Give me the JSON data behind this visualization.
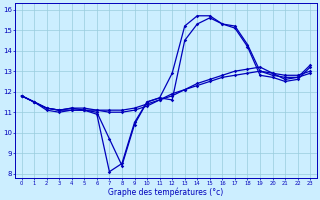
{
  "xlabel": "Graphe des températures (°c)",
  "background_color": "#cceeff",
  "line_color": "#0000bb",
  "grid_color": "#99ccdd",
  "xlim": [
    -0.5,
    23.5
  ],
  "ylim": [
    7.8,
    16.3
  ],
  "yticks": [
    8,
    9,
    10,
    11,
    12,
    13,
    14,
    15,
    16
  ],
  "xticks": [
    0,
    1,
    2,
    3,
    4,
    5,
    6,
    7,
    8,
    9,
    10,
    11,
    12,
    13,
    14,
    15,
    16,
    17,
    18,
    19,
    20,
    21,
    22,
    23
  ],
  "series": [
    {
      "x": [
        0,
        1,
        2,
        3,
        4,
        5,
        6,
        7,
        8,
        9,
        10,
        11,
        12,
        13,
        14,
        15,
        16,
        17,
        18,
        19,
        20,
        21,
        22,
        23
      ],
      "y": [
        11.8,
        11.5,
        11.1,
        11.0,
        11.1,
        11.1,
        10.9,
        8.1,
        8.5,
        10.5,
        11.5,
        11.7,
        12.9,
        15.2,
        15.7,
        15.7,
        15.3,
        15.2,
        14.3,
        13.0,
        12.9,
        12.6,
        12.7,
        13.3
      ]
    },
    {
      "x": [
        0,
        1,
        2,
        3,
        4,
        5,
        6,
        7,
        8,
        9,
        10,
        11,
        12,
        13,
        14,
        15,
        16,
        17,
        18,
        19,
        20,
        21,
        22,
        23
      ],
      "y": [
        11.8,
        11.5,
        11.2,
        11.1,
        11.1,
        11.1,
        11.0,
        9.7,
        8.4,
        10.4,
        11.5,
        11.7,
        11.6,
        14.5,
        15.3,
        15.6,
        15.3,
        15.1,
        14.2,
        12.8,
        12.7,
        12.5,
        12.6,
        13.2
      ]
    },
    {
      "x": [
        0,
        1,
        2,
        3,
        4,
        5,
        6,
        7,
        8,
        9,
        10,
        11,
        12,
        13,
        14,
        15,
        16,
        17,
        18,
        19,
        20,
        21,
        22,
        23
      ],
      "y": [
        11.8,
        11.5,
        11.2,
        11.1,
        11.2,
        11.1,
        11.1,
        11.0,
        11.0,
        11.1,
        11.3,
        11.6,
        11.8,
        12.1,
        12.4,
        12.6,
        12.8,
        13.0,
        13.1,
        13.2,
        12.9,
        12.8,
        12.8,
        13.0
      ]
    },
    {
      "x": [
        0,
        1,
        2,
        3,
        4,
        5,
        6,
        7,
        8,
        9,
        10,
        11,
        12,
        13,
        14,
        15,
        16,
        17,
        18,
        19,
        20,
        21,
        22,
        23
      ],
      "y": [
        11.8,
        11.5,
        11.2,
        11.1,
        11.2,
        11.2,
        11.1,
        11.1,
        11.1,
        11.2,
        11.4,
        11.6,
        11.9,
        12.1,
        12.3,
        12.5,
        12.7,
        12.8,
        12.9,
        13.0,
        12.8,
        12.7,
        12.7,
        12.9
      ]
    }
  ]
}
